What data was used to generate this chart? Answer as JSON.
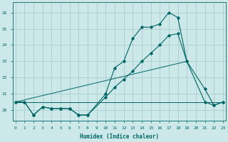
{
  "xlabel": "Humidex (Indice chaleur)",
  "background_color": "#cce8e8",
  "grid_color": "#aacccc",
  "line_color": "#006666",
  "xlim": [
    -0.3,
    23.3
  ],
  "ylim": [
    19.35,
    26.65
  ],
  "yticks": [
    20,
    21,
    22,
    23,
    24,
    25,
    26
  ],
  "xticks": [
    0,
    1,
    2,
    3,
    4,
    5,
    6,
    7,
    8,
    9,
    10,
    11,
    12,
    13,
    14,
    15,
    16,
    17,
    18,
    19,
    20,
    21,
    22,
    23
  ],
  "curve1_x": [
    0,
    1,
    2,
    3,
    4,
    5,
    6,
    7,
    8,
    10,
    11,
    12,
    13,
    14,
    15,
    16,
    17,
    18,
    19,
    21,
    22,
    23
  ],
  "curve1_y": [
    20.5,
    20.5,
    19.7,
    20.2,
    20.1,
    20.1,
    20.1,
    19.7,
    19.7,
    21.0,
    22.6,
    23.0,
    24.4,
    25.1,
    25.1,
    25.3,
    26.0,
    25.7,
    23.0,
    21.3,
    20.3,
    20.5
  ],
  "curve2_x": [
    0,
    1,
    2,
    3,
    4,
    5,
    6,
    7,
    8,
    10,
    11,
    12,
    13,
    14,
    15,
    16,
    17,
    18,
    19,
    21,
    22,
    23
  ],
  "curve2_y": [
    20.5,
    20.5,
    19.7,
    20.2,
    20.1,
    20.1,
    20.1,
    19.7,
    19.7,
    20.8,
    21.4,
    21.9,
    22.4,
    23.0,
    23.5,
    24.0,
    24.6,
    24.7,
    23.0,
    20.5,
    20.3,
    20.5
  ],
  "line3_x": [
    0,
    19
  ],
  "line3_y": [
    20.5,
    23.0
  ],
  "line4_x": [
    0,
    23
  ],
  "line4_y": [
    20.5,
    20.5
  ],
  "tick_fontsize": 4.5,
  "label_fontsize": 5.5
}
